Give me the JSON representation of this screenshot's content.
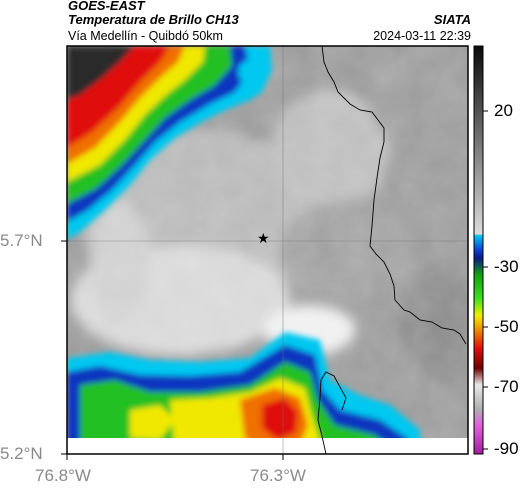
{
  "header": {
    "satellite": "GOES-EAST",
    "product": "Temperatura de Brillo CH13",
    "region": "Vía Medellín - Quibdó 50km",
    "source": "SIATA",
    "timestamp": "2024-03-11 22:39"
  },
  "map": {
    "y_axis_labels": [
      "5.7°N",
      "5.2°N"
    ],
    "x_axis_labels": [
      "76.8°W",
      "76.3°W"
    ],
    "marker_icon": "star-icon",
    "grid": true
  },
  "colorbar": {
    "ticks": [
      "20",
      "-30",
      "-50",
      "-70",
      "-90"
    ],
    "colors": {
      "gray_warm": "#1a1a1a",
      "gray_cold": "#f2f2f2",
      "cyan": "#00b8e6",
      "blue": "#0a2a9e",
      "green": "#1fd11f",
      "yellow": "#f0f000",
      "red": "#e01414",
      "darkred": "#6b0000",
      "magenta": "#c03cc0"
    }
  }
}
